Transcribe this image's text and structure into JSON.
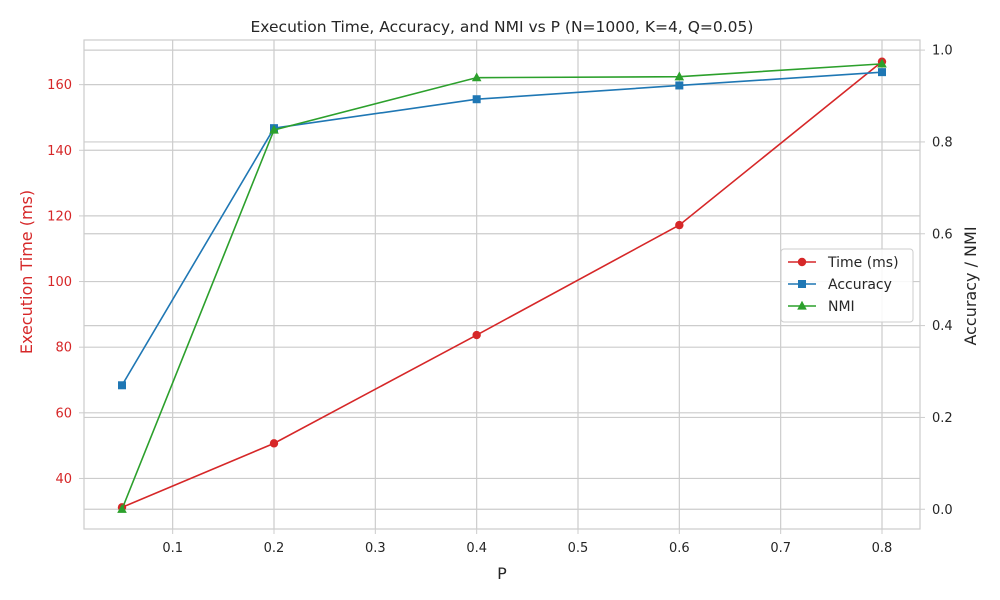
{
  "chart_data": {
    "type": "line",
    "title": "Execution Time, Accuracy, and NMI vs P (N=1000, K=4, Q=0.05)",
    "xlabel": "P",
    "ylabel_left": "Execution Time (ms)",
    "ylabel_right": "Accuracy / NMI",
    "x": [
      0.05,
      0.2,
      0.4,
      0.6,
      0.8
    ],
    "xlim": [
      0.0125,
      0.8375
    ],
    "ylim_left": [
      24.6,
      173.6
    ],
    "ylim_right": [
      -0.043,
      1.022
    ],
    "xticks": [
      0.1,
      0.2,
      0.3,
      0.4,
      0.5,
      0.6,
      0.7,
      0.8
    ],
    "yticks_left": [
      40,
      60,
      80,
      100,
      120,
      140,
      160
    ],
    "yticks_right": [
      0.0,
      0.2,
      0.4,
      0.6,
      0.8,
      1.0
    ],
    "grid": true,
    "legend_position": "center-right",
    "series": [
      {
        "name": "Time (ms)",
        "axis": "left",
        "color": "#d62728",
        "marker": "circle",
        "values": [
          31.2,
          50.7,
          83.7,
          117.2,
          167.0
        ]
      },
      {
        "name": "Accuracy",
        "axis": "right",
        "color": "#1f77b4",
        "marker": "square",
        "values": [
          0.27,
          0.83,
          0.893,
          0.923,
          0.952
        ]
      },
      {
        "name": "NMI",
        "axis": "right",
        "color": "#2ca02c",
        "marker": "triangle",
        "values": [
          0.0,
          0.826,
          0.94,
          0.942,
          0.97
        ]
      }
    ],
    "colors": {
      "left_axis_label": "#d62728",
      "right_axis_label": "#262626",
      "grid": "#cccccc",
      "spine": "#cccccc"
    }
  }
}
